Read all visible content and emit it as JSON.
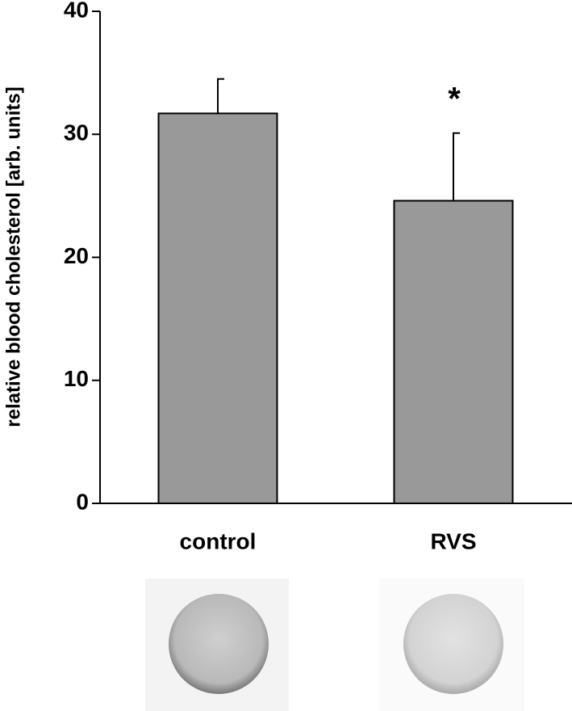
{
  "chart_data": {
    "type": "bar",
    "y_label": "relative blood cholesterol [arb. units]",
    "categories": [
      "control",
      "RVS"
    ],
    "values": [
      31.7,
      24.6
    ],
    "errors": [
      2.8,
      5.5
    ],
    "color": "#999999",
    "annotation": "*",
    "annotation_index": 1,
    "ylim": [
      0,
      40
    ],
    "yticks": [
      0,
      10,
      20,
      30,
      40
    ],
    "grid": false
  }
}
